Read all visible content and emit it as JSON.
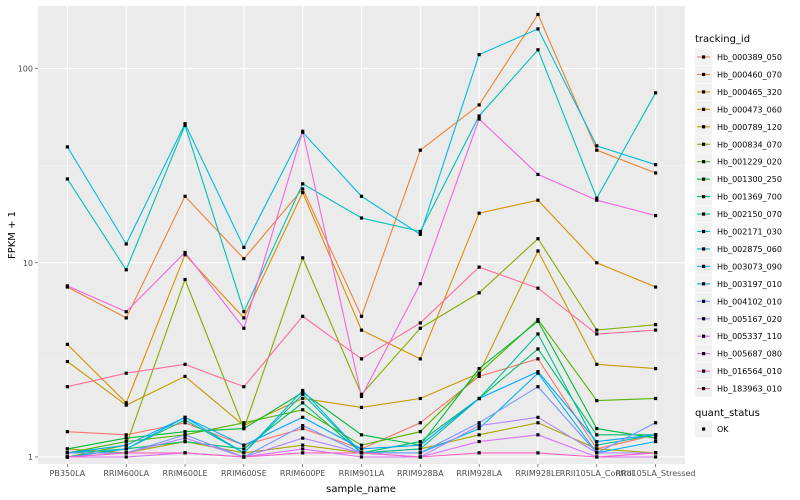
{
  "chart_data": {
    "type": "line",
    "xlabel": "sample_name",
    "ylabel": "FPKM + 1",
    "y_scale": "log10",
    "ylim": [
      0.92,
      210
    ],
    "grid": true,
    "legend_placement": "right",
    "categories": [
      "PB350LA",
      "RRIM600LA",
      "RRIM600LE",
      "RRIM600SE",
      "RRIM600PE",
      "RRIM901LA",
      "RRIM928BA",
      "RRIM928LA",
      "RRIM928LE",
      "RRII105LA_Control",
      "RRII105LA_Stressed"
    ],
    "y_ticks": [
      1,
      10,
      100
    ],
    "y_tick_labels": [
      "1",
      "10",
      "100"
    ],
    "legend_title": "tracking_id",
    "shape_legend_title": "quant_status",
    "shape_legend_entries": [
      "OK"
    ],
    "series": [
      {
        "name": "Hb_000389_050",
        "color": "#F8766D",
        "values": [
          1.35,
          1.3,
          1.5,
          1.15,
          1.4,
          1.1,
          1.5,
          2.6,
          3.2,
          1.1,
          1.3
        ]
      },
      {
        "name": "Hb_000460_070",
        "color": "#EB8335",
        "values": [
          7.5,
          5.2,
          22,
          10.5,
          24,
          5.3,
          38,
          65,
          190,
          38,
          29
        ]
      },
      {
        "name": "Hb_000465_320",
        "color": "#DA8F00",
        "values": [
          3.8,
          1.9,
          11,
          5.2,
          23,
          4.5,
          3.2,
          18,
          21,
          10,
          7.5
        ]
      },
      {
        "name": "Hb_000473_060",
        "color": "#C49A00",
        "values": [
          3.1,
          1.85,
          2.6,
          1.45,
          2.0,
          1.8,
          2.0,
          2.7,
          11.5,
          3.0,
          2.85
        ]
      },
      {
        "name": "Hb_000789_120",
        "color": "#A9A400",
        "values": [
          1.1,
          1.05,
          1.2,
          1.05,
          1.15,
          1.05,
          1.1,
          1.3,
          1.5,
          1.1,
          1.05
        ]
      },
      {
        "name": "Hb_000834_070",
        "color": "#86AC00",
        "values": [
          1.0,
          1.15,
          8.2,
          1.4,
          10.6,
          2.1,
          4.6,
          7.0,
          13.3,
          4.5,
          4.8
        ]
      },
      {
        "name": "Hb_001229_020",
        "color": "#53B400",
        "values": [
          1.05,
          1.2,
          1.3,
          1.5,
          1.75,
          1.15,
          1.35,
          2.7,
          5.1,
          1.95,
          2.0
        ]
      },
      {
        "name": "Hb_001300_250",
        "color": "#00BA38",
        "values": [
          1.1,
          1.25,
          1.35,
          1.4,
          2.15,
          1.3,
          1.15,
          2.85,
          5.0,
          1.4,
          1.25
        ]
      },
      {
        "name": "Hb_001369_700",
        "color": "#00BE6C",
        "values": [
          1.0,
          1.1,
          1.2,
          1.1,
          1.9,
          1.05,
          1.2,
          2.0,
          3.6,
          1.3,
          1.3
        ]
      },
      {
        "name": "Hb_002150_070",
        "color": "#00C094",
        "values": [
          1.05,
          1.1,
          1.55,
          1.05,
          2.1,
          1.05,
          1.1,
          2.0,
          4.3,
          1.15,
          1.3
        ]
      },
      {
        "name": "Hb_002171_030",
        "color": "#00C0B8",
        "values": [
          27,
          9.2,
          51,
          5.6,
          25.5,
          17,
          14.5,
          57,
          125,
          21.5,
          75
        ]
      },
      {
        "name": "Hb_002875_060",
        "color": "#00BCD8",
        "values": [
          39.5,
          12.5,
          52,
          12,
          47,
          22,
          14,
          118,
          160,
          40,
          32
        ]
      },
      {
        "name": "Hb_003073_090",
        "color": "#00B4EF",
        "values": [
          1.0,
          1.1,
          1.6,
          1.05,
          2.2,
          1.05,
          1.05,
          1.4,
          2.7,
          1.05,
          1.2
        ]
      },
      {
        "name": "Hb_003197_010",
        "color": "#00A5FF",
        "values": [
          1.05,
          1.15,
          1.6,
          1.15,
          1.6,
          1.1,
          1.15,
          2.0,
          2.75,
          1.2,
          1.3
        ]
      },
      {
        "name": "Hb_004102_010",
        "color": "#7997FF",
        "values": [
          1.05,
          1.05,
          1.3,
          1.0,
          1.45,
          1.05,
          1.05,
          1.5,
          2.3,
          1.05,
          1.5
        ]
      },
      {
        "name": "Hb_005167_020",
        "color": "#B385FF",
        "values": [
          1.0,
          1.05,
          1.25,
          1.0,
          1.25,
          1.05,
          1.0,
          1.45,
          1.6,
          1.05,
          1.05
        ]
      },
      {
        "name": "Hb_005337_110",
        "color": "#DC71FA",
        "values": [
          1.0,
          1.0,
          1.05,
          1.0,
          1.1,
          1.0,
          1.0,
          1.2,
          1.3,
          1.0,
          1.0
        ]
      },
      {
        "name": "Hb_005687_080",
        "color": "#F464E2",
        "values": [
          7.6,
          5.6,
          11.3,
          4.6,
          47.5,
          2.05,
          7.8,
          55,
          28.5,
          21,
          17.5
        ]
      },
      {
        "name": "Hb_016564_010",
        "color": "#FF61C3",
        "values": [
          1.0,
          1.05,
          1.05,
          1.0,
          1.05,
          1.05,
          1.0,
          1.05,
          1.05,
          1.0,
          1.05
        ]
      },
      {
        "name": "Hb_183963_010",
        "color": "#FF6C9D",
        "values": [
          2.3,
          2.7,
          3.0,
          2.3,
          5.3,
          3.2,
          4.9,
          9.5,
          7.4,
          4.3,
          4.5
        ]
      }
    ]
  }
}
